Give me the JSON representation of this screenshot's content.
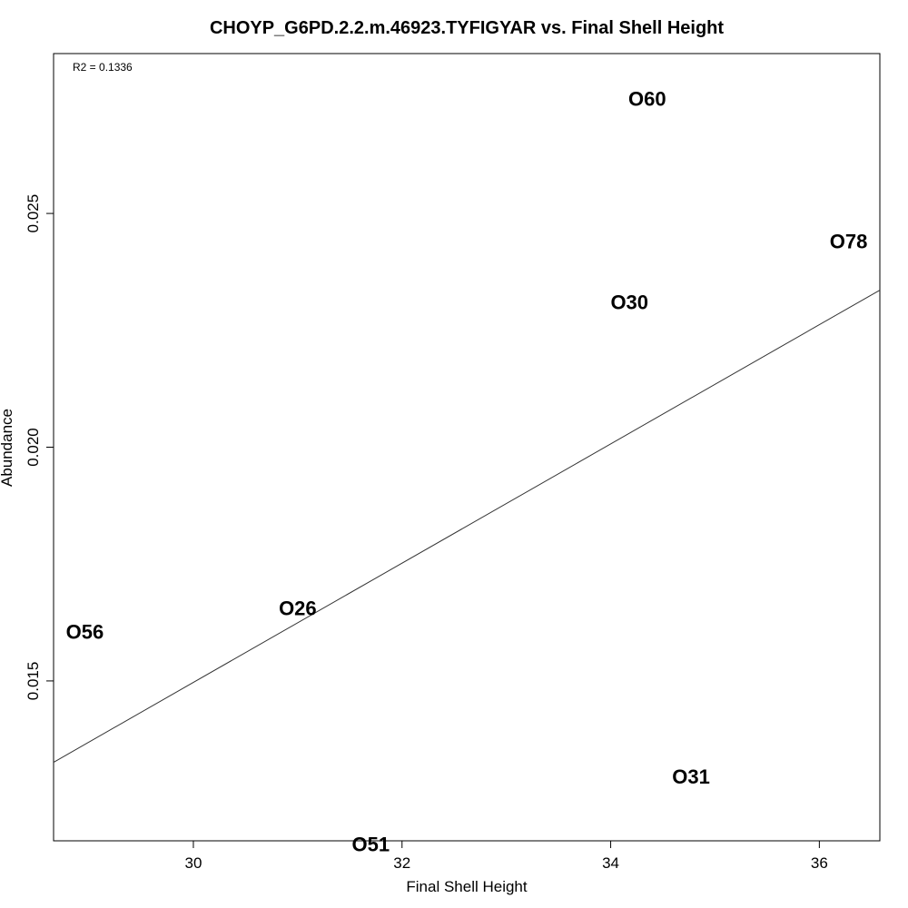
{
  "chart_data": {
    "type": "scatter",
    "title": "CHOYP_G6PD.2.2.m.46923.TYFIGYAR vs. Final Shell Height",
    "xlabel": "Final Shell Height",
    "ylabel": "Abundance",
    "xlim": [
      28.66,
      36.58
    ],
    "ylim": [
      0.01158,
      0.02842
    ],
    "x_ticks": [
      30,
      32,
      34,
      36
    ],
    "y_ticks": [
      0.015,
      0.02,
      0.025
    ],
    "x_tick_labels": [
      "30",
      "32",
      "34",
      "36"
    ],
    "y_tick_labels": [
      "0.015",
      "0.020",
      "0.025"
    ],
    "annotation": "R2 = 0.1336",
    "grid": false,
    "points": [
      {
        "label": "O60",
        "x": 34.35,
        "y": 0.02745
      },
      {
        "label": "O78",
        "x": 36.28,
        "y": 0.0244
      },
      {
        "label": "O30",
        "x": 34.18,
        "y": 0.0231
      },
      {
        "label": "O26",
        "x": 31.0,
        "y": 0.01655
      },
      {
        "label": "O56",
        "x": 28.96,
        "y": 0.01605
      },
      {
        "label": "O31",
        "x": 34.77,
        "y": 0.01295
      },
      {
        "label": "O51",
        "x": 31.7,
        "y": 0.0115
      }
    ],
    "fit_line": {
      "x": [
        28.66,
        36.58
      ],
      "y": [
        0.01326,
        0.02336
      ]
    }
  }
}
